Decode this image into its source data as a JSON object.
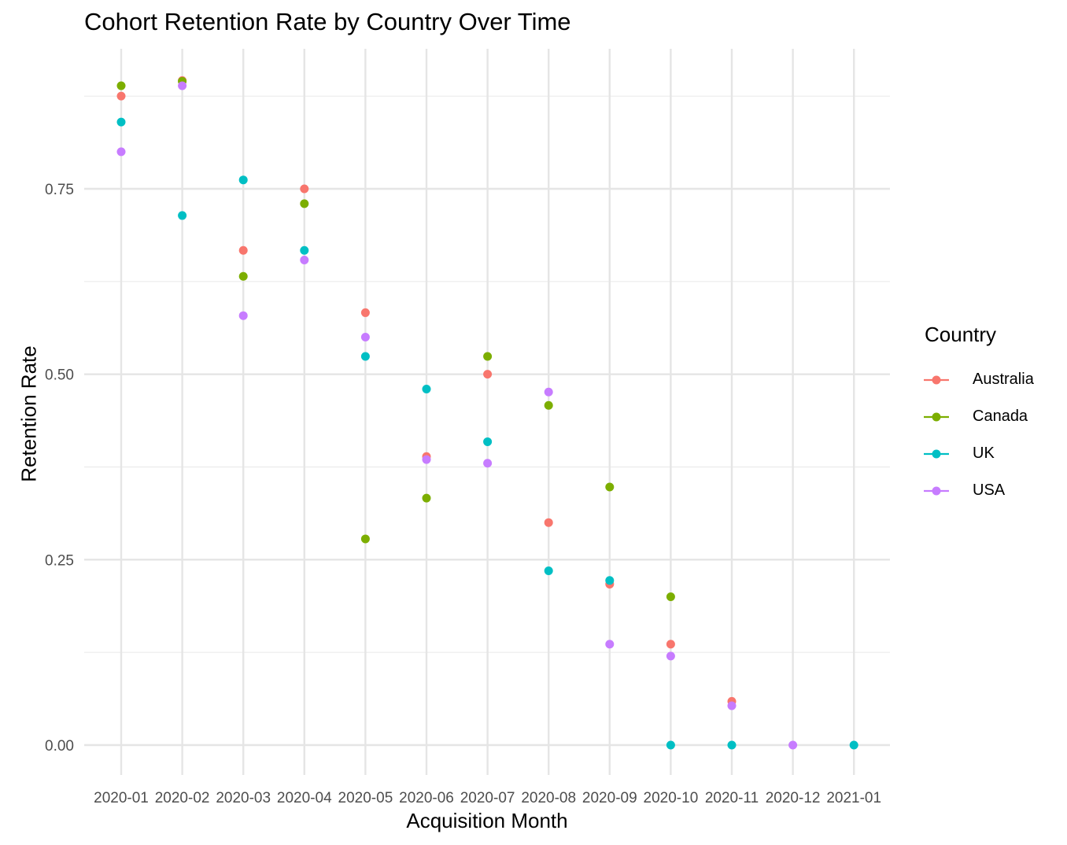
{
  "chart_data": {
    "type": "scatter",
    "title": "Cohort Retention Rate by Country Over Time",
    "xlabel": "Acquisition Month",
    "ylabel": "Retention Rate",
    "categories": [
      "2020-01",
      "2020-02",
      "2020-03",
      "2020-04",
      "2020-05",
      "2020-06",
      "2020-07",
      "2020-08",
      "2020-09",
      "2020-10",
      "2020-11",
      "2020-12",
      "2021-01"
    ],
    "y_ticks": [
      "0.00",
      "0.25",
      "0.50",
      "0.75"
    ],
    "ylim": [
      -0.04,
      0.935
    ],
    "grid": true,
    "legend": {
      "title": "Country",
      "position": "right"
    },
    "series": [
      {
        "name": "Australia",
        "color": "#F8766D",
        "values": [
          0.875,
          0.896,
          0.667,
          0.75,
          0.583,
          0.389,
          0.5,
          0.3,
          0.217,
          0.136,
          0.059,
          null,
          null
        ]
      },
      {
        "name": "Canada",
        "color": "#7CAE00",
        "values": [
          0.889,
          0.895,
          0.632,
          0.73,
          0.278,
          0.333,
          0.524,
          0.458,
          0.348,
          0.2,
          null,
          null,
          null
        ]
      },
      {
        "name": "UK",
        "color": "#00BFC4",
        "values": [
          0.84,
          0.714,
          0.762,
          0.667,
          0.524,
          0.48,
          0.409,
          0.235,
          0.222,
          0.0,
          0.0,
          null,
          0.0
        ]
      },
      {
        "name": "USA",
        "color": "#C77CFF",
        "values": [
          0.8,
          0.889,
          0.579,
          0.654,
          0.55,
          0.385,
          0.38,
          0.476,
          0.136,
          0.12,
          0.053,
          0.0,
          null
        ]
      }
    ]
  }
}
